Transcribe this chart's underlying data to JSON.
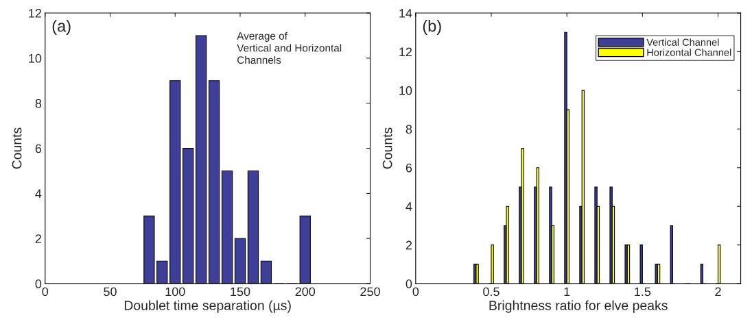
{
  "chart_data": [
    {
      "type": "bar",
      "xlabel": "Doublet time separation (µs)",
      "ylabel": "Counts",
      "x": [
        80,
        90,
        100,
        110,
        120,
        130,
        140,
        150,
        160,
        170,
        180,
        190,
        200
      ],
      "series": [
        {
          "color": "#3f3f9a",
          "values": [
            3,
            1,
            9,
            6,
            11,
            9,
            5,
            2,
            5,
            1,
            0,
            0,
            3
          ]
        }
      ],
      "xlim": [
        0,
        250
      ],
      "xticks": [
        0,
        50,
        100,
        150,
        200,
        250
      ],
      "ylim": [
        0,
        12
      ],
      "yticks": [
        0,
        2,
        4,
        6,
        8,
        10,
        12
      ],
      "annotations": [
        "(a)",
        "Average of\nVertical and Horizontal\nChannels"
      ],
      "grid": false,
      "legend": false
    },
    {
      "type": "bar",
      "xlabel": "Brightness ratio for elve peaks",
      "ylabel": "Counts",
      "x": [
        0.4,
        0.5,
        0.6,
        0.7,
        0.8,
        0.9,
        1.0,
        1.1,
        1.2,
        1.3,
        1.4,
        1.5,
        1.6,
        1.7,
        1.8,
        1.9,
        2.0
      ],
      "series": [
        {
          "name": "Vertical Channel",
          "color": "#3f3f9a",
          "values": [
            1,
            0,
            3,
            5,
            5,
            5,
            13,
            4,
            5,
            5,
            2,
            2,
            1,
            3,
            0,
            1,
            0
          ]
        },
        {
          "name": "Horizontal Channel",
          "color": "#ffff00",
          "values": [
            1,
            2,
            4,
            7,
            6,
            3,
            9,
            10,
            4,
            4,
            2,
            0,
            1,
            0,
            0,
            0,
            2
          ]
        }
      ],
      "xlim": [
        0,
        2.15
      ],
      "xticks": [
        0,
        0.5,
        1,
        1.5,
        2
      ],
      "ylim": [
        0,
        14
      ],
      "yticks": [
        0,
        2,
        4,
        6,
        8,
        10,
        12,
        14
      ],
      "annotations": [
        "(b)"
      ],
      "grid": false,
      "legend": "top right"
    }
  ]
}
